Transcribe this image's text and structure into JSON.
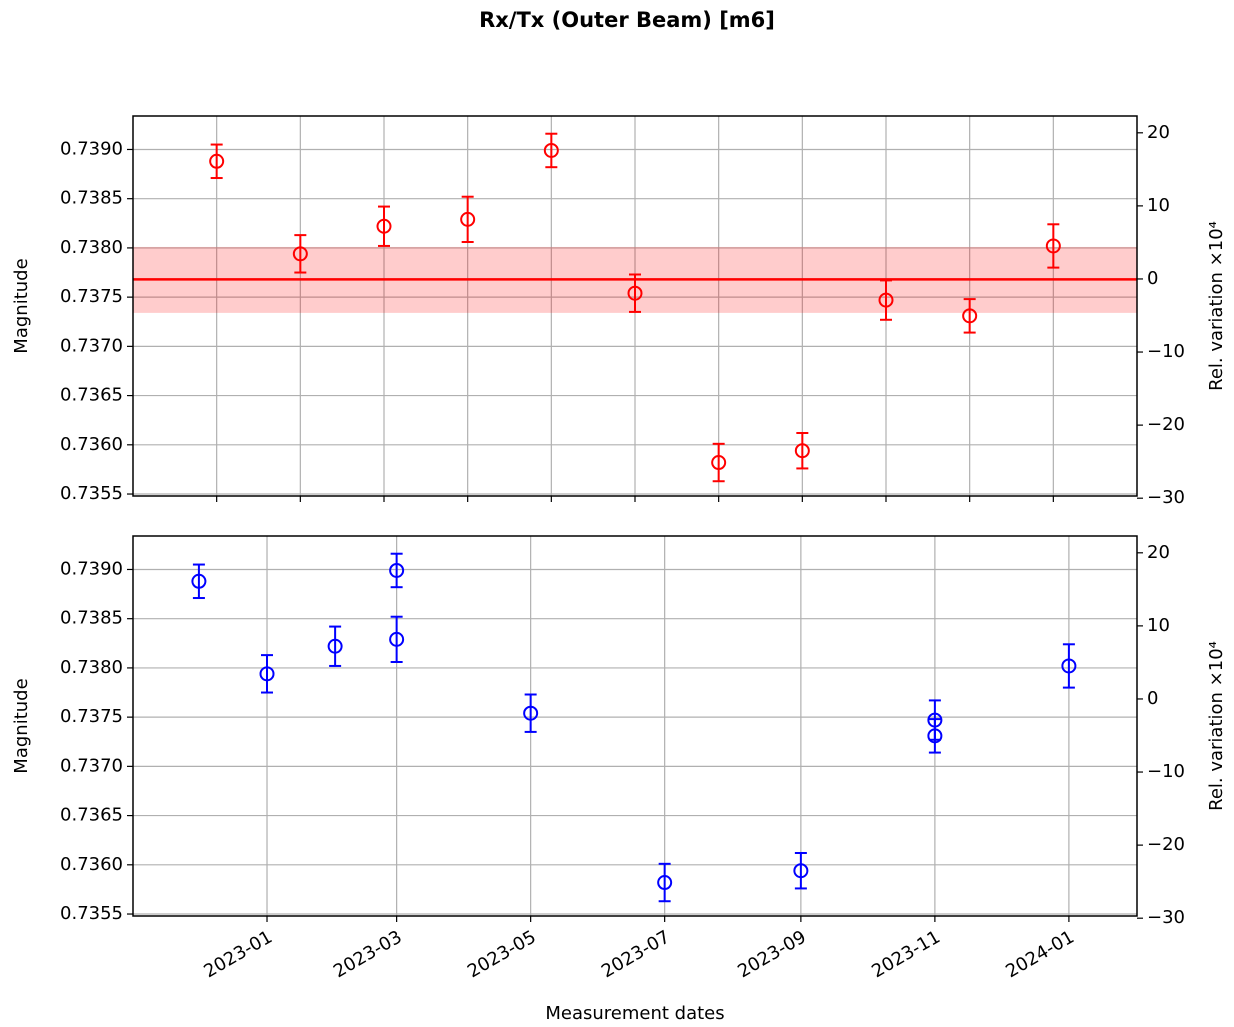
{
  "title": "Rx/Tx (Outer Beam) [m6]",
  "chart_data": [
    {
      "type": "errorbar",
      "color": "#ff0000",
      "x": [
        0,
        1,
        2,
        3,
        4,
        5,
        6,
        7,
        8,
        9,
        10
      ],
      "values": [
        0.73888,
        0.73794,
        0.73822,
        0.73829,
        0.73899,
        0.73754,
        0.73582,
        0.73594,
        0.73747,
        0.73731,
        0.73802
      ],
      "errors": [
        0.00017,
        0.00019,
        0.0002,
        0.00023,
        0.00017,
        0.00019,
        0.00019,
        0.00018,
        0.0002,
        0.00017,
        0.00022
      ],
      "mean_line": 0.73768,
      "band": [
        0.73734,
        0.73801
      ],
      "xlim": [
        -1,
        11
      ],
      "xticks": [
        0,
        1,
        2,
        3,
        4,
        5,
        6,
        7,
        8,
        9,
        10
      ],
      "ylabel": "Magnitude",
      "ylim": [
        0.73548,
        0.73934
      ],
      "yticks": [
        {
          "value": 0.7355,
          "label": "0.7355"
        },
        {
          "value": 0.736,
          "label": "0.7360"
        },
        {
          "value": 0.7365,
          "label": "0.7365"
        },
        {
          "value": 0.737,
          "label": "0.7370"
        },
        {
          "value": 0.7375,
          "label": "0.7375"
        },
        {
          "value": 0.738,
          "label": "0.7380"
        },
        {
          "value": 0.7385,
          "label": "0.7385"
        },
        {
          "value": 0.739,
          "label": "0.7390"
        }
      ],
      "y2label": "Rel. variation ×10⁴",
      "y2lim": [
        -29.7,
        22.3
      ],
      "y2ticks": [
        {
          "value": -30,
          "label": "−30"
        },
        {
          "value": -20,
          "label": "−20"
        },
        {
          "value": -10,
          "label": "−10"
        },
        0,
        10,
        20
      ],
      "grid": true
    },
    {
      "type": "errorbar",
      "color": "#0000ff",
      "x": [
        "2022-12",
        "2023-01",
        "2023-02",
        "2023-03",
        "2023-03",
        "2023-05",
        "2023-07",
        "2023-09",
        "2023-11",
        "2023-11",
        "2024-01"
      ],
      "values": [
        0.73888,
        0.73794,
        0.73822,
        0.73829,
        0.73899,
        0.73754,
        0.73582,
        0.73594,
        0.73747,
        0.73731,
        0.73802
      ],
      "errors": [
        0.00017,
        0.00019,
        0.0002,
        0.00023,
        0.00017,
        0.00019,
        0.00019,
        0.00018,
        0.0002,
        0.00017,
        0.00022
      ],
      "xlim": [
        "2022-11",
        "2024-02"
      ],
      "xticks": [
        "2023-01",
        "2023-03",
        "2023-05",
        "2023-07",
        "2023-09",
        "2023-11",
        "2024-01"
      ],
      "xlabel": "Measurement dates",
      "ylabel": "Magnitude",
      "ylim": [
        0.73548,
        0.73934
      ],
      "yticks": [
        {
          "value": 0.7355,
          "label": "0.7355"
        },
        {
          "value": 0.736,
          "label": "0.7360"
        },
        {
          "value": 0.7365,
          "label": "0.7365"
        },
        {
          "value": 0.737,
          "label": "0.7370"
        },
        {
          "value": 0.7375,
          "label": "0.7375"
        },
        {
          "value": 0.738,
          "label": "0.7380"
        },
        {
          "value": 0.7385,
          "label": "0.7385"
        },
        {
          "value": 0.739,
          "label": "0.7390"
        }
      ],
      "y2label": "Rel. variation ×10⁴",
      "y2lim": [
        -29.7,
        22.3
      ],
      "y2ticks": [
        {
          "value": -30,
          "label": "−30"
        },
        {
          "value": -20,
          "label": "−20"
        },
        {
          "value": -10,
          "label": "−10"
        },
        0,
        10,
        20
      ],
      "grid": true
    }
  ]
}
